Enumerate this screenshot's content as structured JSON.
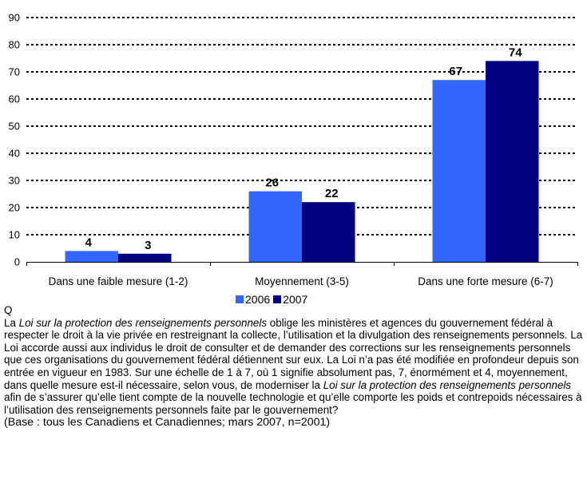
{
  "chart_data": {
    "type": "bar",
    "title": "",
    "xlabel": "",
    "ylabel": "",
    "categories": [
      "Dans une faible mesure (1-2)",
      "Moyennement (3-5)",
      "Dans une forte mesure (6-7)"
    ],
    "series": [
      {
        "name": "2006",
        "values": [
          4,
          26,
          67
        ],
        "color": "#3366FF"
      },
      {
        "name": "2007",
        "values": [
          3,
          22,
          74
        ],
        "color": "#000080"
      }
    ],
    "ylim": [
      0,
      90
    ],
    "yticks": [
      0,
      10,
      20,
      30,
      40,
      50,
      60,
      70,
      80,
      90
    ],
    "ytick_labels": [
      "0",
      "10",
      "20",
      "30",
      "40",
      "50",
      "60",
      "70",
      "80",
      "90"
    ],
    "grid": true,
    "grid_style": "dotted",
    "legend_position": "bottom"
  },
  "question": {
    "label": "Q",
    "parts": [
      {
        "text": "La ",
        "italic": false
      },
      {
        "text": "Loi sur la protection des renseignements personnels",
        "italic": true
      },
      {
        "text": " oblige les ministères et agences du gouvernement fédéral à respecter le droit à la vie privée en restreignant la collecte, l’utilisation et la divulgation des renseignements personnels. La Loi accorde aussi aux individus le droit de consulter et de demander des corrections sur les renseignements personnels que ces organisations du gouvernement fédéral détiennent sur eux. La Loi n’a pas été modifiée en profondeur depuis son entrée en vigueur en 1983. Sur une échelle de 1 à 7, où 1 signifie absolument pas, 7, énormément et 4, moyennement, dans quelle mesure est-il nécessaire, selon vous, de moderniser la ",
        "italic": false
      },
      {
        "text": "Loi sur la protection des renseignements personnels",
        "italic": true
      },
      {
        "text": " afin de s’assurer qu’elle tient compte de la nouvelle technologie et qu’elle comporte les poids et contrepoids nécessaires à l’utilisation des renseignements personnels faite par le gouvernement?",
        "italic": false
      }
    ],
    "base": "(Base : tous les Canadiens et Canadiennes; mars 2007, n=2001)"
  }
}
